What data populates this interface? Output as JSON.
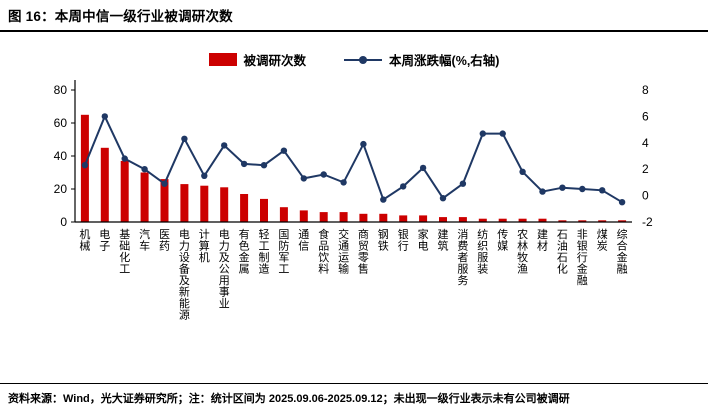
{
  "figure": {
    "title": "图 16：本周中信一级行业被调研次数",
    "source_note": "资料来源：Wind，光大证券研究所；注：统计区间为 2025.09.06-2025.09.12；未出现一级行业表示未有公司被调研"
  },
  "legend": {
    "bar_label": "被调研次数",
    "line_label": "本周涨跌幅(%,右轴)"
  },
  "colors": {
    "bar": "#CC0000",
    "line": "#1F3864",
    "axis": "#000000",
    "text": "#000000"
  },
  "chart_data": {
    "type": "bar",
    "title": "本周中信一级行业被调研次数",
    "xlabel": "",
    "ylabel_left": "被调研次数",
    "ylabel_right": "本周涨跌幅(%)",
    "legend_position": "top",
    "grid": false,
    "categories": [
      "机械",
      "电子",
      "基础化工",
      "汽车",
      "医药",
      "电力设备及新能源",
      "计算机",
      "电力及公用事业",
      "有色金属",
      "轻工制造",
      "国防军工",
      "通信",
      "食品饮料",
      "交通运输",
      "商贸零售",
      "钢铁",
      "银行",
      "家电",
      "建筑",
      "消费者服务",
      "纺织服装",
      "传媒",
      "农林牧渔",
      "建材",
      "石油石化",
      "非银行金融",
      "煤炭",
      "综合金融"
    ],
    "series": [
      {
        "name": "被调研次数",
        "type": "bar",
        "axis": "left",
        "values": [
          65,
          45,
          37,
          30,
          26,
          23,
          22,
          21,
          17,
          14,
          9,
          7,
          6,
          6,
          5,
          5,
          4,
          4,
          3,
          3,
          2,
          2,
          2,
          2,
          1,
          1,
          1,
          1
        ]
      },
      {
        "name": "本周涨跌幅(%,右轴)",
        "type": "line",
        "axis": "right",
        "values": [
          2.3,
          6.0,
          2.8,
          2.0,
          0.9,
          4.3,
          1.5,
          3.8,
          2.4,
          2.3,
          3.4,
          1.3,
          1.6,
          1.0,
          3.9,
          -0.3,
          0.7,
          2.1,
          -0.2,
          0.9,
          4.7,
          4.7,
          1.8,
          0.3,
          0.6,
          0.5,
          0.4,
          -0.5
        ]
      }
    ],
    "left_axis": {
      "min": 0,
      "max": 80,
      "ticks": [
        0,
        20,
        40,
        60,
        80
      ]
    },
    "right_axis": {
      "min": -2,
      "max": 8,
      "ticks": [
        -2,
        0,
        2,
        4,
        6,
        8
      ]
    }
  }
}
